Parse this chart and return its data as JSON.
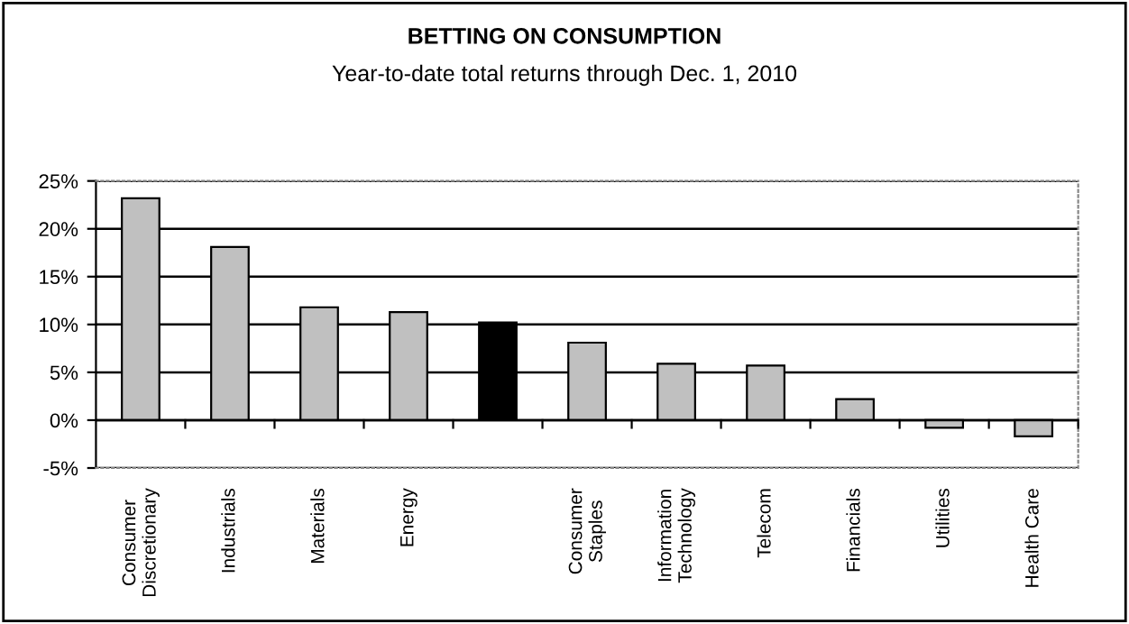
{
  "chart_data": {
    "type": "bar",
    "title": "BETTING ON CONSUMPTION",
    "subtitle": "Year-to-date total returns through Dec. 1, 2010",
    "categories": [
      "Consumer\nDiscretionary",
      "Industrials",
      "Materials",
      "Energy",
      null,
      "Consumer\nStaples",
      "Information\nTechnology",
      "Telecom",
      "Financials",
      "Utilities",
      "Health Care"
    ],
    "values": [
      23.2,
      18.1,
      11.8,
      11.3,
      10.2,
      8.1,
      5.9,
      5.7,
      2.2,
      -0.8,
      -1.7
    ],
    "colors": [
      "#c0c0c0",
      "#c0c0c0",
      "#c0c0c0",
      "#c0c0c0",
      "#000000",
      "#c0c0c0",
      "#c0c0c0",
      "#c0c0c0",
      "#c0c0c0",
      "#c0c0c0",
      "#c0c0c0"
    ],
    "ylim": [
      -5,
      25
    ],
    "yticks": [
      {
        "value": -5,
        "label": "-5%"
      },
      {
        "value": 0,
        "label": "0%"
      },
      {
        "value": 5,
        "label": "5%"
      },
      {
        "value": 10,
        "label": "10%"
      },
      {
        "value": 15,
        "label": "15%"
      },
      {
        "value": 20,
        "label": "20%"
      },
      {
        "value": 25,
        "label": "25%"
      }
    ],
    "grid": "y",
    "legend": false
  }
}
